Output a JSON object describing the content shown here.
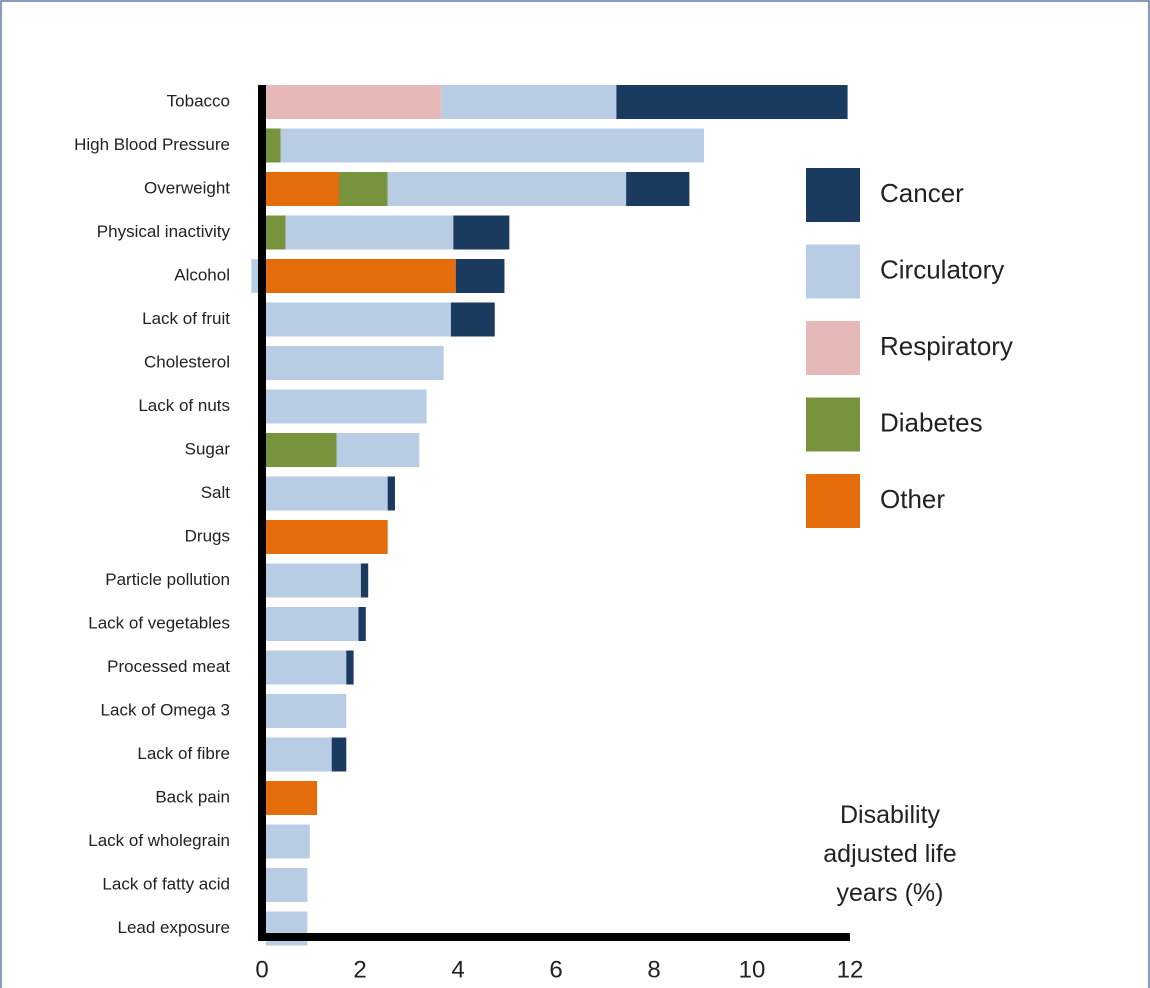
{
  "chart_data": {
    "type": "stacked_barh",
    "categories": [
      "Tobacco",
      "High Blood Pressure",
      "Overweight",
      "Physical inactivity",
      "Alcohol",
      "Lack of fruit",
      "Cholesterol",
      "Lack of nuts",
      "Sugar",
      "Salt",
      "Drugs",
      "Particle pollution",
      "Lack of vegetables",
      "Processed meat",
      "Lack of Omega 3",
      "Lack of fibre",
      "Back pain",
      "Lack of wholegrain",
      "Lack of fatty acid",
      "Lead exposure"
    ],
    "series": [
      {
        "name": "Cancer",
        "color": "#1a3a5f",
        "values": [
          4.75,
          null,
          1.3,
          1.15,
          1.0,
          0.9,
          null,
          null,
          null,
          0.15,
          null,
          0.15,
          0.15,
          0.15,
          null,
          0.3,
          null,
          null,
          null,
          null
        ]
      },
      {
        "name": "Circulatory",
        "color": "#b8cce4",
        "values": [
          3.6,
          8.7,
          4.9,
          3.45,
          -0.3,
          3.8,
          3.65,
          3.3,
          1.7,
          2.5,
          null,
          1.95,
          1.9,
          1.65,
          1.65,
          1.35,
          null,
          0.9,
          0.85,
          0.85
        ]
      },
      {
        "name": "Respiratory",
        "color": "#e6b9b8",
        "values": [
          3.6,
          null,
          null,
          null,
          null,
          null,
          null,
          null,
          null,
          null,
          null,
          null,
          null,
          null,
          null,
          null,
          null,
          null,
          null,
          null
        ]
      },
      {
        "name": "Diabetes",
        "color": "#77933c",
        "values": [
          null,
          0.3,
          1.0,
          0.4,
          null,
          null,
          null,
          null,
          1.45,
          null,
          null,
          null,
          null,
          null,
          null,
          null,
          null,
          null,
          null,
          null
        ]
      },
      {
        "name": "Other",
        "color": "#e46c0a",
        "values": [
          null,
          null,
          1.5,
          null,
          3.9,
          null,
          null,
          null,
          null,
          null,
          2.5,
          null,
          null,
          null,
          null,
          null,
          1.05,
          null,
          null,
          null
        ]
      }
    ],
    "xlim": [
      0,
      12
    ],
    "xticks": [
      0,
      2,
      4,
      6,
      8,
      10,
      12
    ],
    "x_label": "Disability adjusted life years (%)"
  }
}
